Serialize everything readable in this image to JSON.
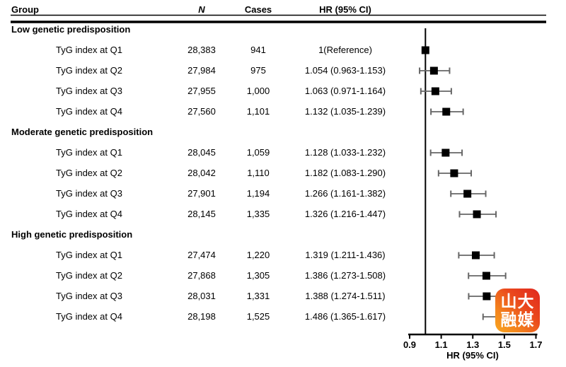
{
  "table_header": {
    "group": "Group",
    "n": "N",
    "cases": "Cases",
    "hr": "HR (95% CI)"
  },
  "chart_data": {
    "type": "scatter",
    "variant": "forest-plot",
    "title": "",
    "xlabel": "HR (95% CI)",
    "xlim": [
      0.9,
      1.7
    ],
    "xticks": [
      "0.9",
      "1.1",
      "1.3",
      "1.5",
      "1.7"
    ],
    "reference_line_x": 1.0,
    "grid": false,
    "groups": [
      {
        "label": "Low genetic predisposition",
        "rows": [
          {
            "label": "TyG index at Q1",
            "n": "28,383",
            "cases": "941",
            "hr_text": "1(Reference)",
            "hr": 1.0,
            "lo": null,
            "hi": null
          },
          {
            "label": "TyG index at Q2",
            "n": "27,984",
            "cases": "975",
            "hr_text": "1.054 (0.963-1.153)",
            "hr": 1.054,
            "lo": 0.963,
            "hi": 1.153
          },
          {
            "label": "TyG index at Q3",
            "n": "27,955",
            "cases": "1,000",
            "hr_text": "1.063 (0.971-1.164)",
            "hr": 1.063,
            "lo": 0.971,
            "hi": 1.164
          },
          {
            "label": "TyG index at Q4",
            "n": "27,560",
            "cases": "1,101",
            "hr_text": "1.132 (1.035-1.239)",
            "hr": 1.132,
            "lo": 1.035,
            "hi": 1.239
          }
        ]
      },
      {
        "label": "Moderate genetic predisposition",
        "rows": [
          {
            "label": "TyG index at Q1",
            "n": "28,045",
            "cases": "1,059",
            "hr_text": "1.128 (1.033-1.232)",
            "hr": 1.128,
            "lo": 1.033,
            "hi": 1.232
          },
          {
            "label": "TyG index at Q2",
            "n": "28,042",
            "cases": "1,110",
            "hr_text": "1.182 (1.083-1.290)",
            "hr": 1.182,
            "lo": 1.083,
            "hi": 1.29
          },
          {
            "label": "TyG index at Q3",
            "n": "27,901",
            "cases": "1,194",
            "hr_text": "1.266 (1.161-1.382)",
            "hr": 1.266,
            "lo": 1.161,
            "hi": 1.382
          },
          {
            "label": "TyG index at Q4",
            "n": "28,145",
            "cases": "1,335",
            "hr_text": "1.326 (1.216-1.447)",
            "hr": 1.326,
            "lo": 1.216,
            "hi": 1.447
          }
        ]
      },
      {
        "label": "High genetic predisposition",
        "rows": [
          {
            "label": "TyG index at Q1",
            "n": "27,474",
            "cases": "1,220",
            "hr_text": "1.319 (1.211-1.436)",
            "hr": 1.319,
            "lo": 1.211,
            "hi": 1.436
          },
          {
            "label": "TyG index at Q2",
            "n": "27,868",
            "cases": "1,305",
            "hr_text": "1.386 (1.273-1.508)",
            "hr": 1.386,
            "lo": 1.273,
            "hi": 1.508
          },
          {
            "label": "TyG index at Q3",
            "n": "28,031",
            "cases": "1,331",
            "hr_text": "1.388 (1.274-1.511)",
            "hr": 1.388,
            "lo": 1.274,
            "hi": 1.511
          },
          {
            "label": "TyG index at Q4",
            "n": "28,198",
            "cases": "1,525",
            "hr_text": "1.486 (1.365-1.617)",
            "hr": 1.486,
            "lo": 1.365,
            "hi": 1.617
          }
        ]
      }
    ]
  },
  "watermark": {
    "line1": "山大",
    "line2": "融媒"
  },
  "colors": {
    "marker": "#000000",
    "whisker": "#666666",
    "axis": "#000000",
    "watermark_red": "#e0281e",
    "watermark_orange": "#f9a81e"
  }
}
